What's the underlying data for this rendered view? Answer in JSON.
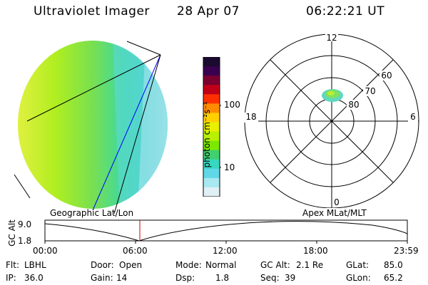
{
  "header": {
    "title": "Ultraviolet Imager",
    "date": "28 Apr 07",
    "time": "06:22:21 UT"
  },
  "colorbar": {
    "label": "photon cm⁻²s⁻¹",
    "ticks": [
      "100",
      "10"
    ],
    "colors": [
      "#1a0a30",
      "#3a0050",
      "#7a0030",
      "#c00018",
      "#ff3000",
      "#ff8c00",
      "#ffd000",
      "#e8f000",
      "#b8f000",
      "#7ce800",
      "#40d070",
      "#38d8c0",
      "#60d8e8",
      "#a8e8f0",
      "#e0f0f4"
    ]
  },
  "polar_plot": {
    "mlt_labels": {
      "top": "12",
      "left": "18",
      "right": "6",
      "bottom": "0"
    },
    "lat_labels": [
      "60",
      "70",
      "80"
    ]
  },
  "timeline": {
    "left_label": "Geographic Lat/Lon",
    "right_label": "Apex MLat/MLT",
    "axis_title": "GC Alt",
    "y_ticks": [
      "9.0",
      "1.8"
    ],
    "x_ticks": [
      "00:00",
      "06:00",
      "12:00",
      "18:00",
      "23:59"
    ],
    "cursor_color": "#cc0000"
  },
  "status": {
    "flt_label": "Flt:",
    "flt": "LBHL",
    "ip_label": "IP:",
    "ip": "36.0",
    "door_label": "Door:",
    "door": "Open",
    "gain_label": "Gain:",
    "gain": "14",
    "mode_label": "Mode:",
    "mode": "Normal",
    "dsp_label": "Dsp:",
    "dsp": "1.8",
    "gcalt_label": "GC Alt:",
    "gcalt": "2.1 Re",
    "seq_label": "Seq:",
    "seq": "39",
    "glat_label": "GLat:",
    "glat": "85.0",
    "glon_label": "GLon:",
    "glon": "65.2"
  }
}
